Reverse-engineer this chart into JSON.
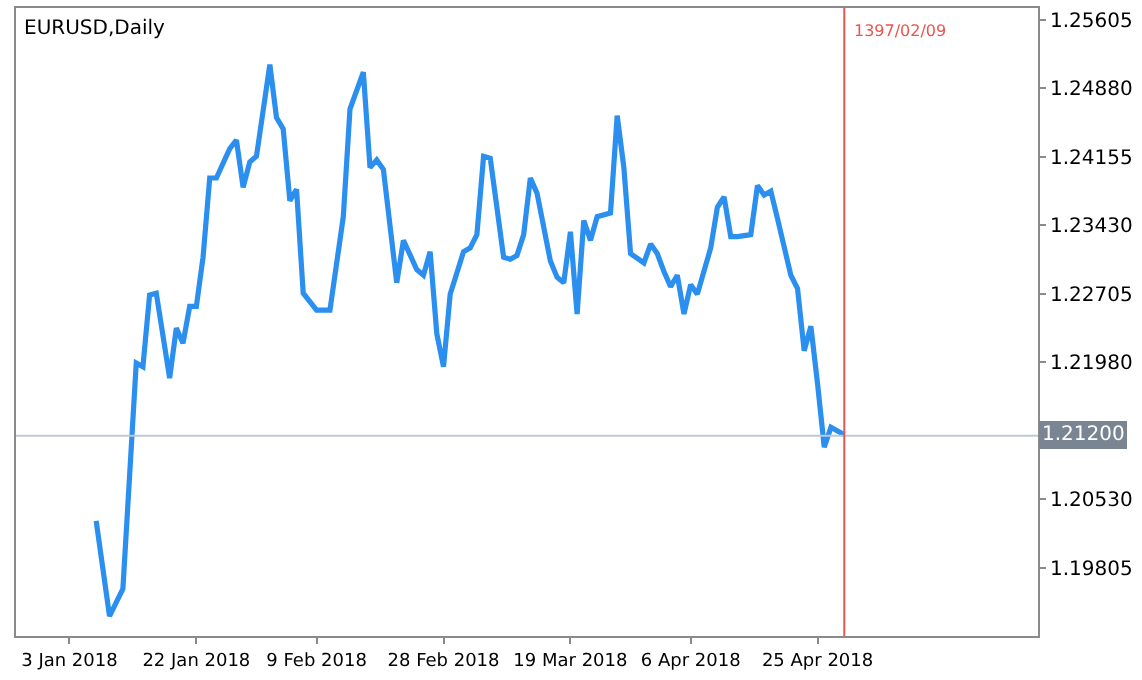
{
  "chart_data": {
    "type": "line",
    "title": "EURUSD,Daily",
    "x": [
      "2018-01-07",
      "2018-01-09",
      "2018-01-11",
      "2018-01-12",
      "2018-01-13",
      "2018-01-14",
      "2018-01-15",
      "2018-01-16",
      "2018-01-18",
      "2018-01-19",
      "2018-01-20",
      "2018-01-21",
      "2018-01-22",
      "2018-01-23",
      "2018-01-24",
      "2018-01-25",
      "2018-01-27",
      "2018-01-28",
      "2018-01-29",
      "2018-01-30",
      "2018-01-31",
      "2018-02-02",
      "2018-02-03",
      "2018-02-04",
      "2018-02-05",
      "2018-02-06",
      "2018-02-07",
      "2018-02-09",
      "2018-02-11",
      "2018-02-13",
      "2018-02-14",
      "2018-02-16",
      "2018-02-17",
      "2018-02-18",
      "2018-02-19",
      "2018-02-21",
      "2018-02-22",
      "2018-02-24",
      "2018-02-25",
      "2018-02-26",
      "2018-02-27",
      "2018-02-28",
      "2018-03-01",
      "2018-03-03",
      "2018-03-04",
      "2018-03-05",
      "2018-03-06",
      "2018-03-07",
      "2018-03-09",
      "2018-03-10",
      "2018-03-11",
      "2018-03-12",
      "2018-03-13",
      "2018-03-14",
      "2018-03-16",
      "2018-03-17",
      "2018-03-18",
      "2018-03-19",
      "2018-03-20",
      "2018-03-21",
      "2018-03-22",
      "2018-03-23",
      "2018-03-25",
      "2018-03-26",
      "2018-03-27",
      "2018-03-28",
      "2018-03-30",
      "2018-03-31",
      "2018-04-01",
      "2018-04-02",
      "2018-04-03",
      "2018-04-04",
      "2018-04-05",
      "2018-04-06",
      "2018-04-07",
      "2018-04-09",
      "2018-04-10",
      "2018-04-11",
      "2018-04-12",
      "2018-04-13",
      "2018-04-15",
      "2018-04-16",
      "2018-04-17",
      "2018-04-18",
      "2018-04-19",
      "2018-04-21",
      "2018-04-22",
      "2018-04-23",
      "2018-04-24",
      "2018-04-25",
      "2018-04-26",
      "2018-04-27",
      "2018-04-28",
      "2018-04-29"
    ],
    "series": [
      {
        "color": "#2b8ff0",
        "values": [
          1.203,
          1.1929,
          1.1958,
          1.2077,
          1.2197,
          1.2193,
          1.2269,
          1.2271,
          1.2181,
          1.2234,
          1.2218,
          1.2257,
          1.2257,
          1.2309,
          1.2393,
          1.2393,
          1.2424,
          1.2433,
          1.2383,
          1.241,
          1.2416,
          1.2513,
          1.2457,
          1.2445,
          1.2369,
          1.2381,
          1.2271,
          1.2253,
          1.2253,
          1.2352,
          1.2466,
          1.2505,
          1.2404,
          1.2412,
          1.2402,
          1.2282,
          1.2327,
          1.2296,
          1.229,
          1.2315,
          1.2228,
          1.2193,
          1.227,
          1.2315,
          1.2319,
          1.2333,
          1.2416,
          1.2414,
          1.2309,
          1.2307,
          1.2311,
          1.2333,
          1.2393,
          1.2377,
          1.2305,
          1.2288,
          1.2282,
          1.2336,
          1.2249,
          1.2348,
          1.2327,
          1.2352,
          1.2356,
          1.2459,
          1.2404,
          1.2313,
          1.2303,
          1.2323,
          1.2313,
          1.2294,
          1.2278,
          1.229,
          1.2249,
          1.228,
          1.227,
          1.2319,
          1.2362,
          1.2373,
          1.2331,
          1.2331,
          1.2333,
          1.2385,
          1.2375,
          1.2379,
          1.235,
          1.229,
          1.2276,
          1.221,
          1.2236,
          1.2175,
          1.2108,
          1.2129,
          1.2125,
          1.2121
        ]
      }
    ],
    "xlim": [
      "2017-12-26",
      "2018-05-28"
    ],
    "xticks": [
      {
        "value": "2018-01-03",
        "label": "3 Jan 2018"
      },
      {
        "value": "2018-01-22",
        "label": "22 Jan 2018"
      },
      {
        "value": "2018-02-09",
        "label": "9 Feb 2018"
      },
      {
        "value": "2018-02-28",
        "label": "28 Feb 2018"
      },
      {
        "value": "2018-03-19",
        "label": "19 Mar 2018"
      },
      {
        "value": "2018-04-06",
        "label": "6 Apr 2018"
      },
      {
        "value": "2018-04-25",
        "label": "25 Apr 2018"
      }
    ],
    "ylim": [
      1.1908,
      1.2573
    ],
    "yticks": [
      {
        "value": 1.25605,
        "label": "1.25605"
      },
      {
        "value": 1.2488,
        "label": "1.24880"
      },
      {
        "value": 1.24155,
        "label": "1.24155"
      },
      {
        "value": 1.2343,
        "label": "1.23430"
      },
      {
        "value": 1.22705,
        "label": "1.22705"
      },
      {
        "value": 1.2198,
        "label": "1.21980"
      },
      {
        "value": 1.2053,
        "label": "1.20530"
      },
      {
        "value": 1.19805,
        "label": "1.19805"
      }
    ],
    "ref_lines": [
      {
        "axis": "y",
        "value": 1.212,
        "label": "1.21200",
        "color": "#c0c8d4"
      },
      {
        "axis": "x",
        "value": "2018-04-29",
        "label": "1397/02/09",
        "color": "#e8564f"
      }
    ]
  }
}
